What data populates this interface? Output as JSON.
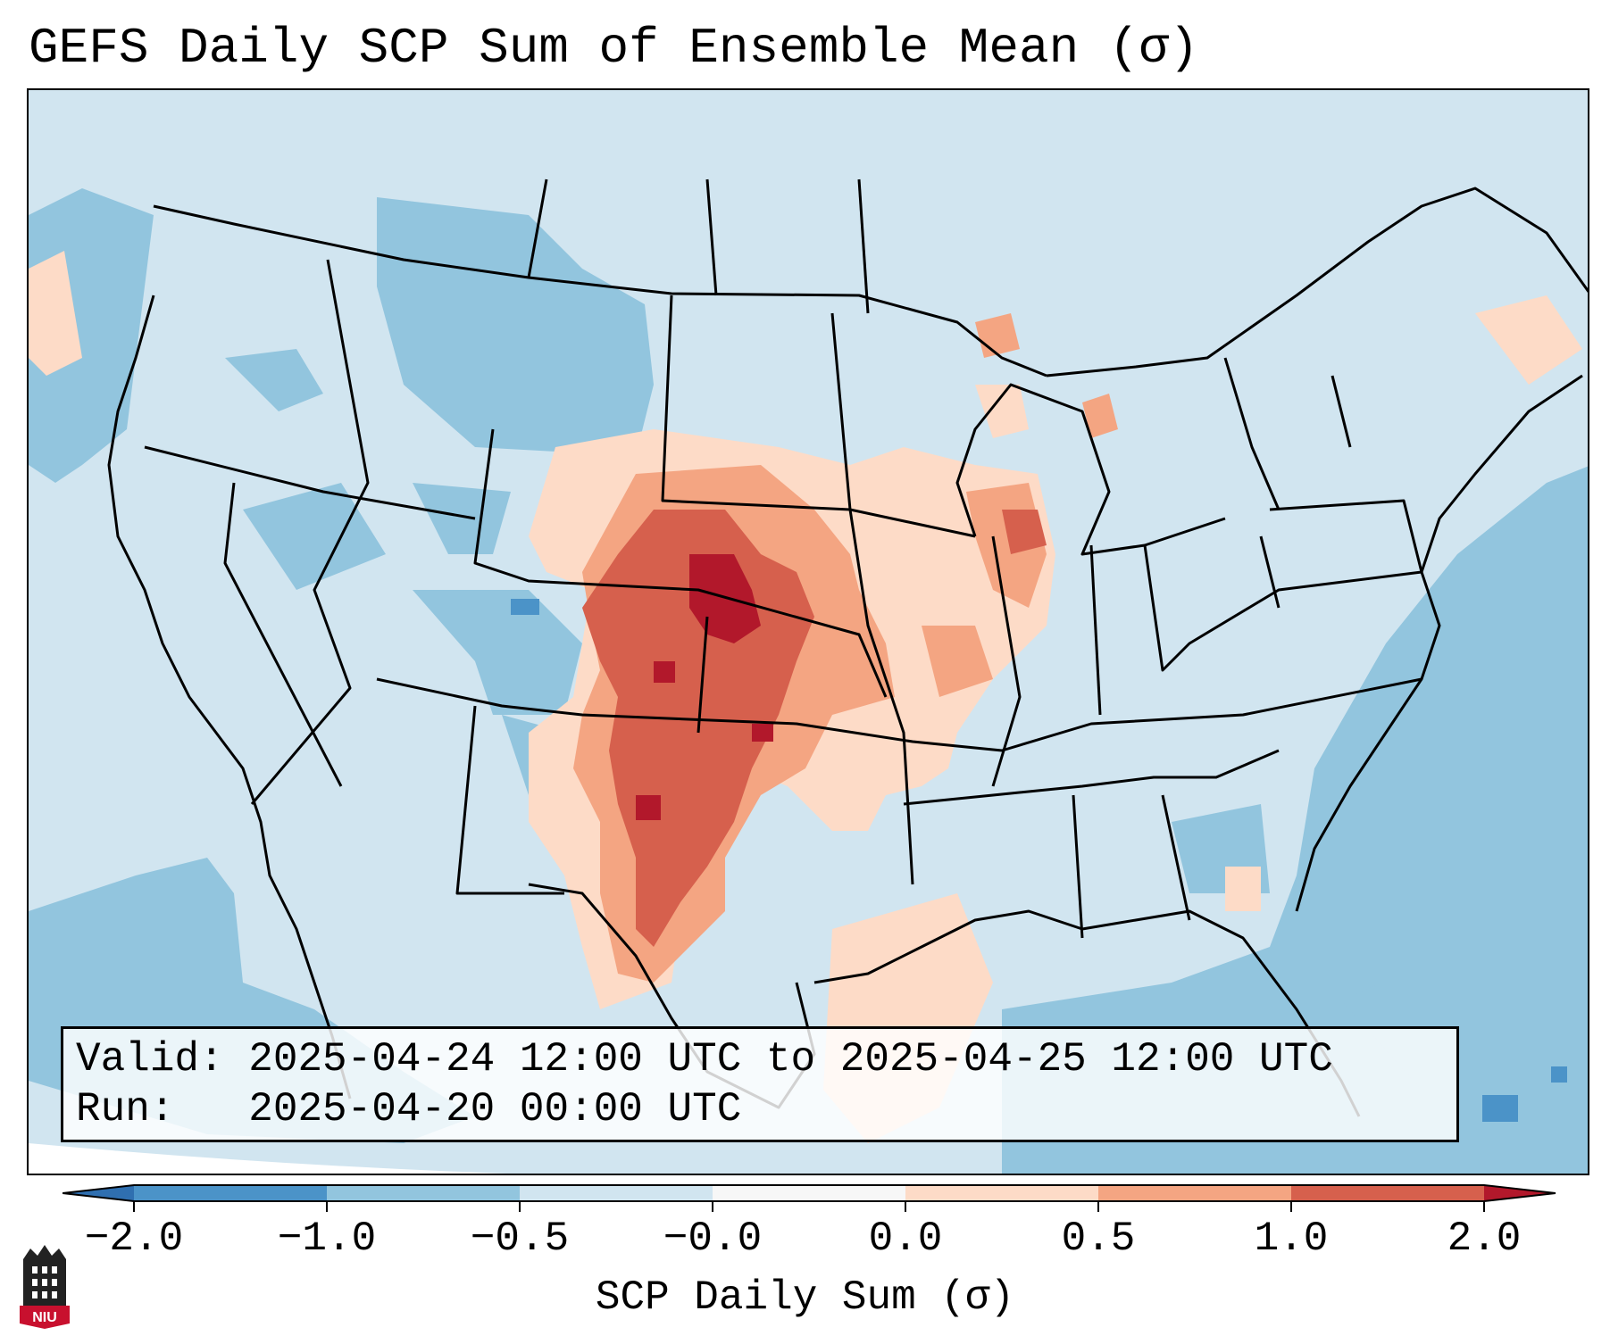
{
  "title": "GEFS Daily SCP Sum of Ensemble Mean (σ)",
  "info_box": {
    "valid_line": "Valid: 2025-04-24 12:00 UTC to 2025-04-25 12:00 UTC",
    "run_line": "Run:   2025-04-20 00:00 UTC"
  },
  "colorbar": {
    "label": "SCP Daily Sum (σ)",
    "ticks": [
      "−2.0",
      "−1.0",
      "−0.5",
      "−0.0",
      "0.0",
      "0.5",
      "1.0",
      "2.0"
    ],
    "bins": [
      {
        "range": "< -2.0",
        "color": "#2f6fb0"
      },
      {
        "range": "-2.0 to -1.0",
        "color": "#4b93c8"
      },
      {
        "range": "-1.0 to -0.5",
        "color": "#92c5de"
      },
      {
        "range": "-0.5 to -0.0",
        "color": "#d1e5f0"
      },
      {
        "range": "-0.0 to 0.0",
        "color": "#f7f7f7"
      },
      {
        "range": "0.0 to 0.5",
        "color": "#fddbc7"
      },
      {
        "range": "0.5 to 1.0",
        "color": "#f4a582"
      },
      {
        "range": "1.0 to 2.0",
        "color": "#d6604d"
      },
      {
        "range": "> 2.0",
        "color": "#b2182b"
      }
    ]
  },
  "map": {
    "background_color": "#d1e5f0",
    "anomaly_region_summary": "Positive SCP anomaly (0.5 to >2.0 sigma) over central/southern Plains (NE, KS, OK, TX), with weaker positive anomaly over IA, MO, IL, AR; negative anomaly elsewhere"
  },
  "logo": {
    "text": "NIU",
    "color": "#c8102e"
  }
}
